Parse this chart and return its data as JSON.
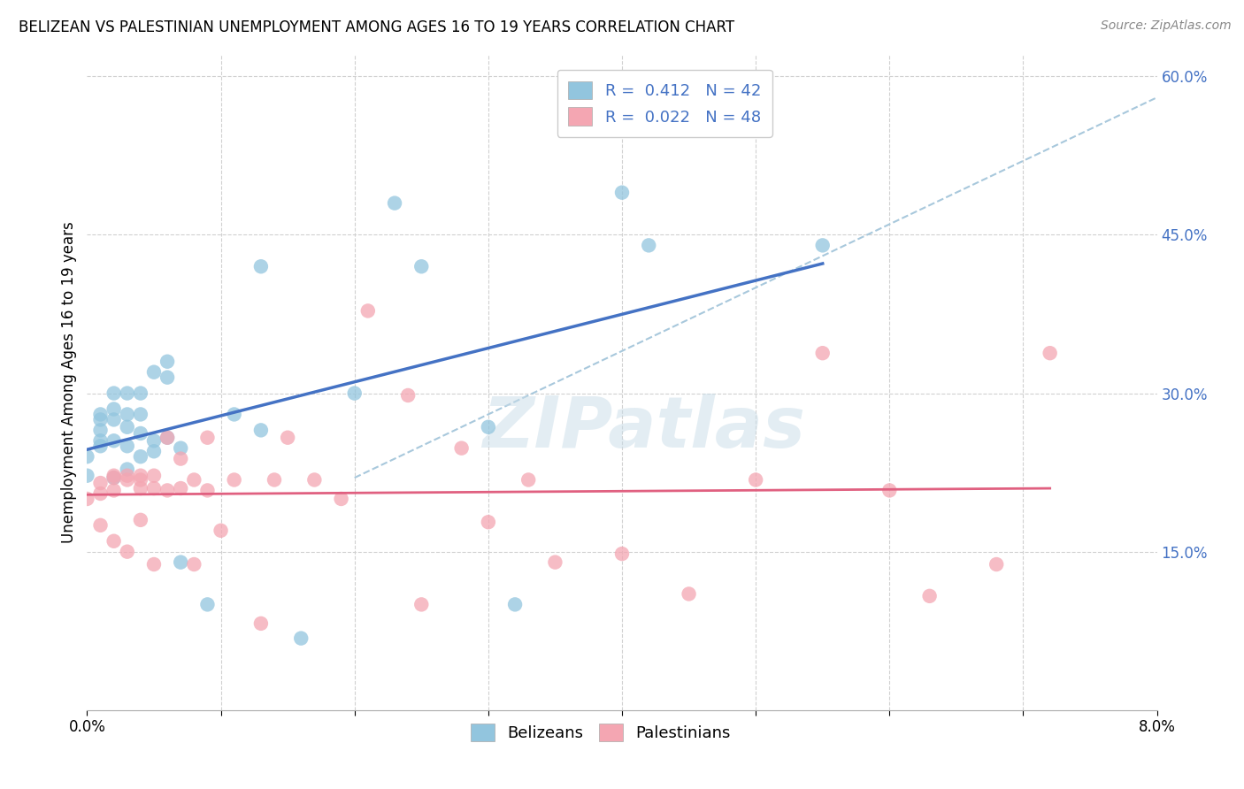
{
  "title": "BELIZEAN VS PALESTINIAN UNEMPLOYMENT AMONG AGES 16 TO 19 YEARS CORRELATION CHART",
  "source": "Source: ZipAtlas.com",
  "ylabel": "Unemployment Among Ages 16 to 19 years",
  "xlim": [
    0.0,
    0.08
  ],
  "ylim": [
    0.0,
    0.62
  ],
  "x_tick_positions": [
    0.0,
    0.01,
    0.02,
    0.03,
    0.04,
    0.05,
    0.06,
    0.07,
    0.08
  ],
  "x_tick_labels": [
    "0.0%",
    "",
    "",
    "",
    "",
    "",
    "",
    "",
    "8.0%"
  ],
  "y_ticks_right": [
    0.0,
    0.15,
    0.3,
    0.45,
    0.6
  ],
  "y_tick_labels_right": [
    "",
    "15.0%",
    "30.0%",
    "45.0%",
    "60.0%"
  ],
  "belizeans_R": "0.412",
  "belizeans_N": "42",
  "palestinians_R": "0.022",
  "palestinians_N": "48",
  "belizean_color": "#92c5de",
  "palestinian_color": "#f4a6b2",
  "blue_line_color": "#4472c4",
  "pink_line_color": "#e06080",
  "dashed_line_color": "#a8c8dc",
  "grid_color": "#d0d0d0",
  "watermark": "ZIPatlas",
  "belizeans_x": [
    0.0,
    0.0,
    0.001,
    0.001,
    0.001,
    0.001,
    0.001,
    0.002,
    0.002,
    0.002,
    0.002,
    0.002,
    0.003,
    0.003,
    0.003,
    0.003,
    0.003,
    0.004,
    0.004,
    0.004,
    0.004,
    0.005,
    0.005,
    0.005,
    0.006,
    0.006,
    0.006,
    0.007,
    0.007,
    0.009,
    0.011,
    0.013,
    0.013,
    0.016,
    0.02,
    0.023,
    0.025,
    0.03,
    0.032,
    0.04,
    0.042,
    0.055
  ],
  "belizeans_y": [
    0.222,
    0.24,
    0.25,
    0.255,
    0.265,
    0.275,
    0.28,
    0.22,
    0.255,
    0.275,
    0.285,
    0.3,
    0.228,
    0.25,
    0.268,
    0.28,
    0.3,
    0.24,
    0.262,
    0.28,
    0.3,
    0.245,
    0.255,
    0.32,
    0.258,
    0.315,
    0.33,
    0.248,
    0.14,
    0.1,
    0.28,
    0.265,
    0.42,
    0.068,
    0.3,
    0.48,
    0.42,
    0.268,
    0.1,
    0.49,
    0.44,
    0.44
  ],
  "palestinians_x": [
    0.0,
    0.001,
    0.001,
    0.001,
    0.002,
    0.002,
    0.002,
    0.002,
    0.003,
    0.003,
    0.003,
    0.004,
    0.004,
    0.004,
    0.004,
    0.005,
    0.005,
    0.005,
    0.006,
    0.006,
    0.007,
    0.007,
    0.008,
    0.008,
    0.009,
    0.009,
    0.01,
    0.011,
    0.013,
    0.014,
    0.015,
    0.017,
    0.019,
    0.021,
    0.024,
    0.025,
    0.028,
    0.03,
    0.033,
    0.035,
    0.04,
    0.045,
    0.05,
    0.055,
    0.06,
    0.063,
    0.068,
    0.072
  ],
  "palestinians_y": [
    0.2,
    0.175,
    0.205,
    0.215,
    0.16,
    0.208,
    0.22,
    0.222,
    0.15,
    0.218,
    0.222,
    0.18,
    0.21,
    0.218,
    0.222,
    0.138,
    0.21,
    0.222,
    0.208,
    0.258,
    0.21,
    0.238,
    0.138,
    0.218,
    0.208,
    0.258,
    0.17,
    0.218,
    0.082,
    0.218,
    0.258,
    0.218,
    0.2,
    0.378,
    0.298,
    0.1,
    0.248,
    0.178,
    0.218,
    0.14,
    0.148,
    0.11,
    0.218,
    0.338,
    0.208,
    0.108,
    0.138,
    0.338
  ]
}
